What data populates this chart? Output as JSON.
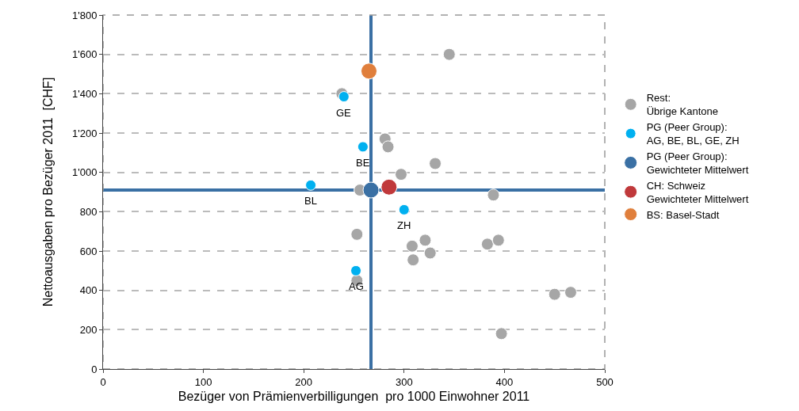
{
  "chart_data": {
    "type": "scatter",
    "xlabel": "Bezüger von Prämienverbilligungen  pro 1000 Einwohner 2011",
    "ylabel": "Nettoausgaben pro Bezüger 2011  [CHF]",
    "xlim": [
      0,
      500
    ],
    "xticks": [
      0,
      100,
      200,
      300,
      400,
      500
    ],
    "ylim": [
      0,
      1800
    ],
    "yticks": [
      0,
      200,
      400,
      600,
      800,
      {
        "value": 1000,
        "label": "1'000"
      },
      {
        "value": 1200,
        "label": "1'200"
      },
      {
        "value": 1400,
        "label": "1'400"
      },
      {
        "value": 1600,
        "label": "1'600"
      },
      {
        "value": 1800,
        "label": "1'800"
      }
    ],
    "grid": "y",
    "legend": "right",
    "marker": "circle",
    "series": [
      {
        "name": "Rest:\nÜbrige Kantone",
        "color": "#a6a6a6",
        "x": [
          345,
          238,
          281,
          284,
          331,
          297,
          256,
          389,
          253,
          253,
          308,
          321,
          326,
          309,
          383,
          394,
          450,
          466,
          397
        ],
        "values": [
          1600,
          1400,
          1170,
          1130,
          1045,
          990,
          910,
          885,
          685,
          450,
          625,
          655,
          590,
          555,
          635,
          655,
          380,
          390,
          180
        ]
      },
      {
        "name": "PG (Peer Group):\nAG, BE, BL, GE, ZH",
        "color": "#00b0f0",
        "x": [
          252,
          259,
          207,
          240,
          300
        ],
        "values": [
          500,
          1130,
          935,
          1385,
          810
        ]
      },
      {
        "name": "PG (Peer Group):\nGewichteter Mittelwert",
        "color": "#3a70a4",
        "x": [
          267
        ],
        "values": [
          910
        ]
      },
      {
        "name": "CH: Schweiz\nGewichteter Mittelwert",
        "color": "#c0393b",
        "x": [
          285
        ],
        "values": [
          925
        ]
      },
      {
        "name": "BS: Basel-Stadt",
        "color": "#e07f3c",
        "x": [
          265
        ],
        "values": [
          1515
        ]
      }
    ],
    "ref_lines": [
      {
        "axis": "x",
        "value": 267,
        "color": "#3a70a4"
      },
      {
        "axis": "y",
        "value": 910,
        "color": "#3a70a4"
      }
    ],
    "annotations": [
      {
        "text": "AG",
        "x": 252,
        "y": 500
      },
      {
        "text": "BE",
        "x": 259,
        "y": 1130
      },
      {
        "text": "BL",
        "x": 207,
        "y": 935
      },
      {
        "text": "GE",
        "x": 240,
        "y": 1385
      },
      {
        "text": "ZH",
        "x": 300,
        "y": 810
      }
    ]
  }
}
